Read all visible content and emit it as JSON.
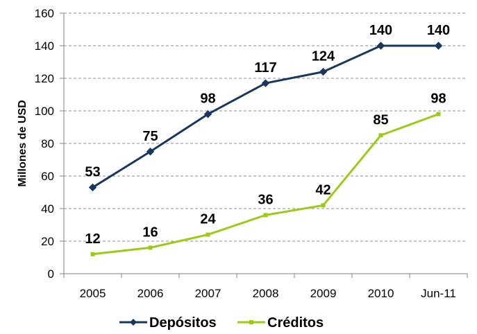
{
  "chart_data": {
    "type": "line",
    "categories": [
      "2005",
      "2006",
      "2007",
      "2008",
      "2009",
      "2010",
      "Jun-11"
    ],
    "ylabel": "Millones de USD",
    "xlabel": "",
    "ylim": [
      0,
      160
    ],
    "yticks": [
      0,
      20,
      40,
      60,
      80,
      100,
      120,
      140,
      160
    ],
    "grid": "horizontal dashed",
    "legend": "bottom",
    "series": [
      {
        "name": "Depósitos",
        "values": [
          53,
          75,
          98,
          117,
          124,
          140,
          140
        ],
        "labels": [
          "53",
          "75",
          "98",
          "117",
          "124",
          "140",
          "140"
        ],
        "color": "#17375E",
        "marker": "diamond"
      },
      {
        "name": "Créditos",
        "values": [
          12,
          16,
          24,
          36,
          42,
          85,
          98
        ],
        "labels": [
          "12",
          "16",
          "24",
          "36",
          "42",
          "85",
          "98"
        ],
        "color": "#9BCB14",
        "marker": "square"
      }
    ]
  }
}
